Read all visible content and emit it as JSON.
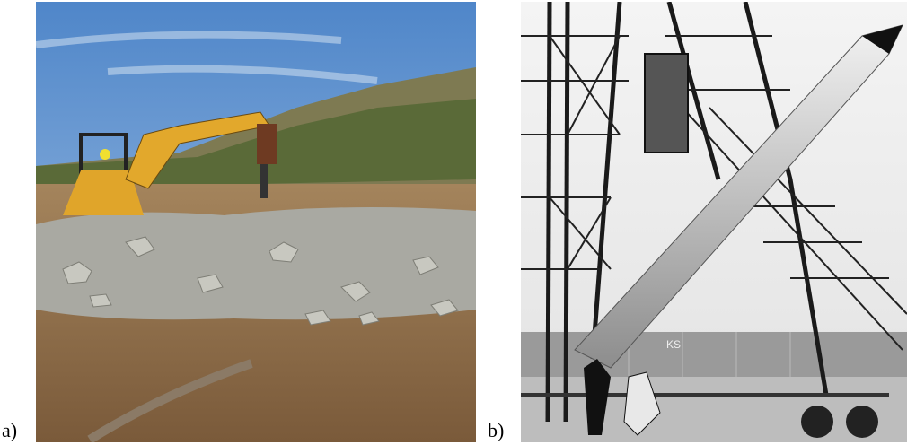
{
  "panels": [
    {
      "label": "a)"
    },
    {
      "label": "b)",
      "sign": "KS"
    }
  ]
}
